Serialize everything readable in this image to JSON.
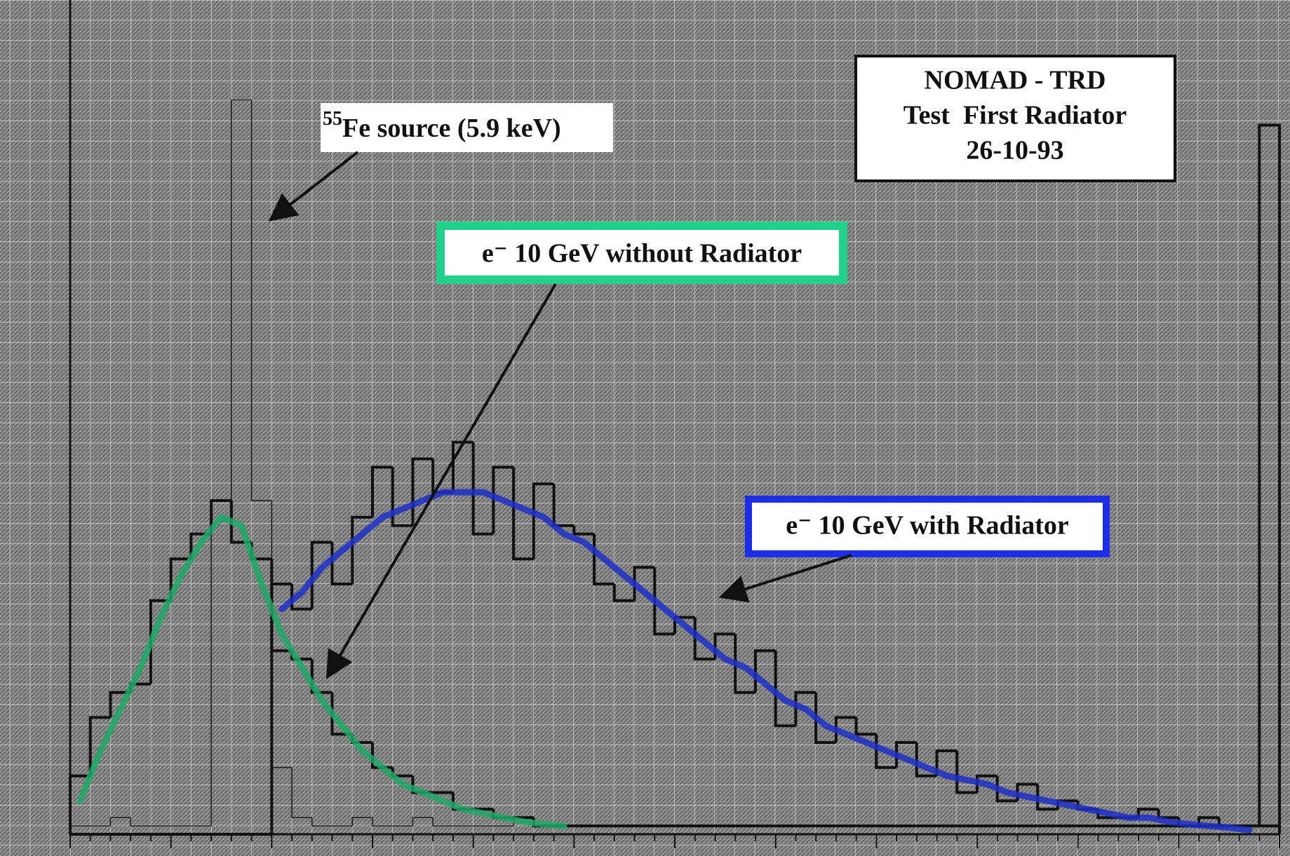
{
  "chart_data": {
    "type": "histogram",
    "bins": [
      0,
      1,
      2,
      3,
      4,
      5,
      6,
      7,
      8,
      9,
      10,
      11,
      12,
      13,
      14,
      15,
      16,
      17,
      18,
      19,
      20,
      21,
      22,
      23,
      24,
      25,
      26,
      27,
      28,
      29,
      30,
      31,
      32,
      33,
      34,
      35,
      36,
      37,
      38,
      39,
      40,
      41,
      42,
      43,
      44,
      45,
      46,
      47,
      48,
      49,
      50,
      51,
      52,
      53,
      54,
      55,
      56,
      57,
      58,
      59,
      60
    ],
    "xlim": [
      0,
      60
    ],
    "ylim": [
      0,
      100
    ],
    "grid": true,
    "series": [
      {
        "color": "#1a1a1a",
        "width": 1.5,
        "values": [
          1,
          1,
          2,
          1,
          1,
          1,
          1,
          40,
          88,
          40,
          8,
          2,
          1,
          1,
          2,
          1,
          1,
          2,
          1,
          1,
          1,
          1,
          2,
          1,
          1,
          1,
          1,
          1,
          1,
          1,
          1,
          1,
          1,
          1,
          1,
          1,
          1,
          1,
          1,
          1,
          1,
          1,
          1,
          1,
          1,
          1,
          1,
          1,
          1,
          1,
          1,
          1,
          1,
          1,
          1,
          1,
          1,
          1,
          1,
          1
        ]
      },
      {
        "color": "#111111",
        "width": 4,
        "values": [
          7,
          14,
          17,
          18,
          28,
          33,
          36,
          40,
          35,
          33,
          22,
          21,
          17,
          12,
          11,
          8,
          7,
          5,
          5,
          3,
          3,
          2,
          2,
          1,
          1,
          1,
          1,
          1,
          1,
          1,
          1,
          1,
          1,
          1,
          1,
          1,
          1,
          1,
          1,
          1,
          1,
          1,
          1,
          1,
          1,
          1,
          1,
          1,
          1,
          1,
          1,
          1,
          1,
          1,
          1,
          1,
          1,
          1,
          1,
          1
        ]
      },
      {
        "color": "#111111",
        "width": 4,
        "values": [
          0,
          0,
          0,
          0,
          0,
          0,
          0,
          0,
          0,
          0,
          30,
          27,
          35,
          30,
          38,
          44,
          37,
          45,
          41,
          47,
          36,
          44,
          33,
          42,
          37,
          36,
          30,
          28,
          32,
          24,
          26,
          21,
          24,
          17,
          22,
          13,
          17,
          11,
          14,
          12,
          8,
          11,
          7,
          10,
          5,
          7,
          4,
          6,
          3,
          4,
          3,
          2,
          2,
          3,
          2,
          1,
          2,
          1,
          1,
          85
        ]
      }
    ],
    "fits": [
      {
        "color": "#1fa866",
        "x": [
          0.5,
          1.5,
          2.5,
          3.5,
          4.5,
          5.5,
          6.5,
          7.5,
          8.5,
          9.5,
          10.5,
          11.5,
          12.5,
          13.5,
          14.5,
          15.5,
          16.5,
          17.5,
          18.5,
          19.5,
          20.5,
          21.5,
          22.5,
          23.5,
          24.5
        ],
        "values": [
          4,
          10,
          15,
          20,
          26,
          31,
          35,
          38,
          37,
          30,
          24,
          20,
          16,
          13,
          10,
          8,
          6,
          5,
          4,
          3,
          2.5,
          2,
          1.5,
          1.2,
          1
        ]
      },
      {
        "color": "#1f2fc8",
        "x": [
          10.5,
          11.5,
          12.5,
          13.5,
          14.5,
          15.5,
          16.5,
          17.5,
          18.5,
          19.5,
          20.5,
          21.5,
          22.5,
          23.5,
          24.5,
          25.5,
          26.5,
          27.5,
          28.5,
          29.5,
          30.5,
          31.5,
          32.5,
          33.5,
          34.5,
          35.5,
          36.5,
          37.5,
          38.5,
          39.5,
          40.5,
          41.5,
          42.5,
          43.5,
          44.5,
          45.5,
          46.5,
          47.5,
          48.5,
          49.5,
          50.5,
          51.5,
          52.5,
          53.5,
          54.5,
          55.5,
          56.5,
          57.5,
          58.5
        ],
        "values": [
          27,
          29,
          32,
          34,
          36,
          38,
          39,
          40,
          41,
          41,
          41,
          40,
          39,
          38,
          36,
          35,
          33,
          31,
          29,
          27,
          25,
          23,
          21,
          20,
          18,
          16,
          15,
          13,
          12,
          11,
          10,
          9,
          8,
          7,
          6.5,
          6,
          5,
          4.5,
          4,
          3.5,
          3,
          2.5,
          2,
          2,
          1.5,
          1.2,
          1,
          0.8,
          0.5
        ]
      }
    ],
    "annotations": {
      "fe_superscript": "55",
      "fe_text": "Fe source (5.9 keV)",
      "without": "e⁻ 10 GeV without Radiator",
      "with": "e⁻ 10 GeV with Radiator"
    },
    "title_box": [
      "NOMAD - TRD",
      "Test  First Radiator",
      "26-10-93"
    ]
  }
}
